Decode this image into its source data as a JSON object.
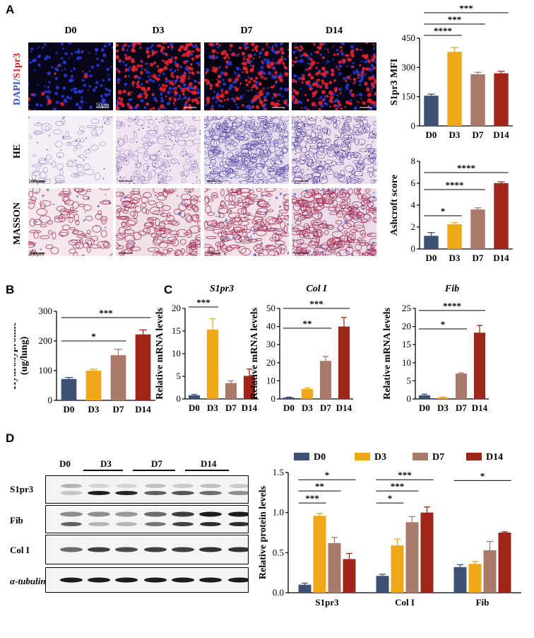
{
  "panels": {
    "A": "A",
    "B": "B",
    "C": "C",
    "D": "D"
  },
  "groups": [
    "D0",
    "D3",
    "D7",
    "D14"
  ],
  "colors": {
    "D0": "#3d5272",
    "D3": "#f0a818",
    "D7": "#a9796b",
    "D14": "#a0251a",
    "dapi": "#3a4be0",
    "s1pr3": "#e02020"
  },
  "micrographs": {
    "rows": [
      {
        "label_a": "DAPI/",
        "label_b": "S1pr3"
      },
      {
        "label": "HE"
      },
      {
        "label": "MASSON"
      }
    ],
    "scalebars": [
      "50μm",
      "100μm",
      "200μm"
    ]
  },
  "western": {
    "group_labels": [
      "D0",
      "D3",
      "D7",
      "D14"
    ],
    "rows": [
      "S1pr3",
      "Fib",
      "Col I",
      "α-tubulin"
    ]
  },
  "chart_data": [
    {
      "id": "A-mfi",
      "type": "bar",
      "categories": [
        "D0",
        "D3",
        "D7",
        "D14"
      ],
      "values": [
        155,
        380,
        265,
        270
      ],
      "errors": [
        8,
        22,
        10,
        10
      ],
      "ylabel": "S1pr3 MFI",
      "ylim": [
        0,
        450
      ],
      "yticks": [
        0,
        150,
        300,
        450
      ],
      "sig": [
        {
          "a": 0,
          "b": 1,
          "t": "****"
        },
        {
          "a": 0,
          "b": 2,
          "t": "***"
        },
        {
          "a": 0,
          "b": 3,
          "t": "***"
        }
      ]
    },
    {
      "id": "A-ashcroft",
      "type": "bar",
      "categories": [
        "D0",
        "D3",
        "D7",
        "D14"
      ],
      "values": [
        1.2,
        2.25,
        3.6,
        6.0
      ],
      "errors": [
        0.3,
        0.15,
        0.15,
        0.12
      ],
      "ylabel": "Ashcroft score",
      "ylim": [
        0,
        8
      ],
      "yticks": [
        0,
        2,
        4,
        6,
        8
      ],
      "sig": [
        {
          "a": 0,
          "b": 1,
          "t": "*"
        },
        {
          "a": 0,
          "b": 2,
          "t": "****"
        },
        {
          "a": 0,
          "b": 3,
          "t": "****"
        }
      ]
    },
    {
      "id": "B",
      "type": "bar",
      "categories": [
        "D0",
        "D3",
        "D7",
        "D14"
      ],
      "values": [
        72,
        100,
        152,
        222
      ],
      "errors": [
        5,
        5,
        20,
        15
      ],
      "ylabel_line1": "Hydroxyproline",
      "ylabel_line2": "(ug/lung)",
      "ylim": [
        0,
        300
      ],
      "yticks": [
        0,
        100,
        200,
        300
      ],
      "sig": [
        {
          "a": 0,
          "b": 2,
          "t": "*"
        },
        {
          "a": 0,
          "b": 3,
          "t": "***"
        }
      ]
    },
    {
      "id": "C-s1pr3",
      "type": "bar",
      "title": "S1pr3",
      "categories": [
        "D0",
        "D3",
        "D7",
        "D14"
      ],
      "values": [
        0.8,
        15.3,
        3.5,
        5.1
      ],
      "errors": [
        0.2,
        2.4,
        0.5,
        1.5
      ],
      "ylabel": "Relative mRNA levels",
      "ylim": [
        0,
        20
      ],
      "yticks": [
        0,
        5,
        10,
        15,
        20
      ],
      "sig": [
        {
          "a": 0,
          "b": 1,
          "t": "***"
        }
      ]
    },
    {
      "id": "C-col1",
      "type": "bar",
      "title": "Col I",
      "categories": [
        "D0",
        "D3",
        "D7",
        "D14"
      ],
      "values": [
        0.8,
        5.5,
        21,
        40
      ],
      "errors": [
        0.2,
        0.6,
        2.5,
        5
      ],
      "ylabel": "Relative mRNA levels",
      "ylim": [
        0,
        50
      ],
      "yticks": [
        0,
        10,
        20,
        30,
        40,
        50
      ],
      "sig": [
        {
          "a": 0,
          "b": 2,
          "t": "**"
        },
        {
          "a": 0,
          "b": 3,
          "t": "***"
        }
      ]
    },
    {
      "id": "C-fib",
      "type": "bar",
      "title": "Fib",
      "categories": [
        "D0",
        "D3",
        "D7",
        "D14"
      ],
      "values": [
        1.0,
        0.4,
        7.0,
        18.3
      ],
      "errors": [
        0.3,
        0.1,
        0.2,
        2.0
      ],
      "ylabel": "Relative mRNA levels",
      "ylim": [
        0,
        25
      ],
      "yticks": [
        0,
        5,
        10,
        15,
        20,
        25
      ],
      "sig": [
        {
          "a": 0,
          "b": 2,
          "t": "*"
        },
        {
          "a": 0,
          "b": 3,
          "t": "****"
        }
      ]
    },
    {
      "id": "D",
      "type": "bar",
      "categories": [
        "S1pr3",
        "Col I",
        "Fib"
      ],
      "ylabel": "Relative protein levels",
      "ylim": [
        0,
        1.5
      ],
      "yticks": [
        0.0,
        0.5,
        1.0,
        1.5
      ],
      "legend": "top",
      "series": [
        {
          "name": "D0",
          "values": [
            0.1,
            0.21,
            0.32
          ],
          "errors": [
            0.02,
            0.02,
            0.03
          ]
        },
        {
          "name": "D3",
          "values": [
            0.96,
            0.59,
            0.36
          ],
          "errors": [
            0.03,
            0.08,
            0.03
          ]
        },
        {
          "name": "D7",
          "values": [
            0.62,
            0.88,
            0.53
          ],
          "errors": [
            0.07,
            0.07,
            0.11
          ]
        },
        {
          "name": "D14",
          "values": [
            0.42,
            1.0,
            0.75
          ],
          "errors": [
            0.07,
            0.07,
            0.01
          ]
        }
      ],
      "sig": [
        {
          "g": 0,
          "a": 0,
          "b": 1,
          "t": "***"
        },
        {
          "g": 0,
          "a": 0,
          "b": 2,
          "t": "**"
        },
        {
          "g": 0,
          "a": 0,
          "b": 3,
          "t": "*"
        },
        {
          "g": 1,
          "a": 0,
          "b": 1,
          "t": "*"
        },
        {
          "g": 1,
          "a": 0,
          "b": 2,
          "t": "***"
        },
        {
          "g": 1,
          "a": 0,
          "b": 3,
          "t": "***"
        },
        {
          "g": 2,
          "a": 0,
          "b": 3,
          "t": "*"
        }
      ]
    }
  ]
}
